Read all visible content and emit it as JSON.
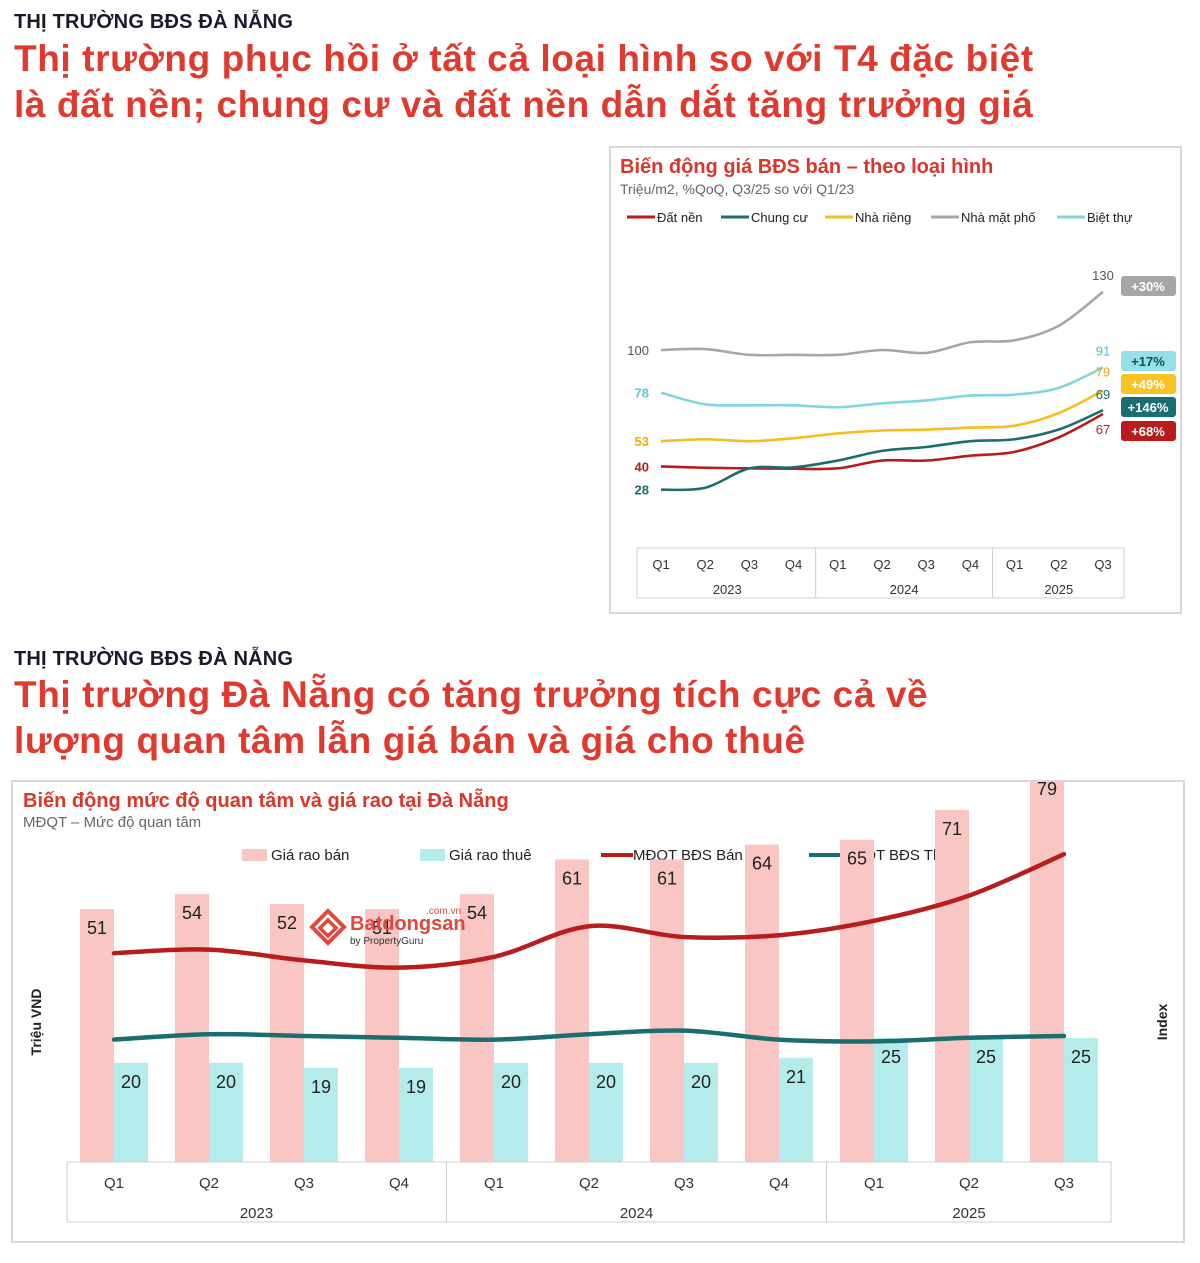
{
  "section1": {
    "eyebrow": "THỊ TRƯỜNG BĐS ĐÀ NẴNG",
    "headline_line1": "Thị trường phục hồi ở tất cả loại hình so với T4 đặc biệt",
    "headline_line2": "là đất nền; chung cư và đất nền dẫn dắt tăng trưởng giá"
  },
  "section2": {
    "eyebrow": "THỊ TRƯỜNG BĐS ĐÀ NẴNG",
    "headline_line1": "Thị trường Đà Nẵng có tăng trưởng tích cực cả về",
    "headline_line2": "lượng quan tâm lẫn giá bán và giá cho thuê"
  },
  "logo": {
    "name": "Batdongsan",
    "suffix": ".com.vn",
    "tagline": "by PropertyGuru"
  },
  "chart_data": [
    {
      "type": "line",
      "title": "Biến động giá BĐS bán – theo loại hình",
      "subtitle": "Triệu/m2, %QoQ, Q3/25 so với Q1/23",
      "quarters": [
        "Q1",
        "Q2",
        "Q3",
        "Q4",
        "Q1",
        "Q2",
        "Q3",
        "Q4",
        "Q1",
        "Q2",
        "Q3"
      ],
      "years": [
        {
          "label": "2023",
          "span": 4
        },
        {
          "label": "2024",
          "span": 4
        },
        {
          "label": "2025",
          "span": 3
        }
      ],
      "ylim": [
        20,
        140
      ],
      "legend_position": "top",
      "series": [
        {
          "name": "Đất nền",
          "color": "#b81c1c",
          "values": [
            40,
            39.3,
            39,
            38.8,
            39,
            43,
            43,
            45.5,
            47.5,
            55,
            67
          ],
          "start_label": "40",
          "end_label": "67",
          "change": "+68%"
        },
        {
          "name": "Chung cư",
          "color": "#1b6e70",
          "values": [
            28,
            29,
            39,
            39.5,
            43,
            48,
            50,
            53,
            54,
            59,
            69
          ],
          "start_label": "28",
          "end_label": "69",
          "change": "+146%"
        },
        {
          "name": "Nhà riêng",
          "color": "#f5bd1f",
          "values": [
            53,
            54,
            53,
            54.5,
            57,
            58.5,
            59,
            60,
            61,
            67.5,
            79
          ],
          "start_label": "53",
          "end_label": "79",
          "change": "+49%"
        },
        {
          "name": "Nhà mặt phố",
          "color": "#a6a6a6",
          "values": [
            100,
            100.5,
            97.5,
            97.5,
            97.5,
            100,
            98.5,
            104,
            105,
            112.5,
            130
          ],
          "start_label": "100",
          "end_label": "130",
          "change": "+30%"
        },
        {
          "name": "Biệt thự",
          "color": "#7fd6e0",
          "values": [
            78,
            72,
            71.5,
            71.5,
            70.5,
            72.5,
            74,
            76.5,
            77,
            80.5,
            91
          ],
          "start_label": "78",
          "end_label": "91",
          "change": "+17%"
        }
      ]
    },
    {
      "type": "bar",
      "title": "Biến động mức độ quan tâm và giá rao tại Đà Nẵng",
      "subtitle": "MĐQT – Mức độ quan tâm",
      "ylabel": "Triệu VND",
      "y2label": "Index",
      "quarters": [
        "Q1",
        "Q2",
        "Q3",
        "Q4",
        "Q1",
        "Q2",
        "Q3",
        "Q4",
        "Q1",
        "Q2",
        "Q3"
      ],
      "years": [
        {
          "label": "2023",
          "span": 4
        },
        {
          "label": "2024",
          "span": 4
        },
        {
          "label": "2025",
          "span": 3
        }
      ],
      "ylim": [
        0,
        100
      ],
      "legend_position": "top",
      "series": [
        {
          "name": "Giá rao bán",
          "kind": "bar",
          "color": "#f9c6c3",
          "values": [
            51,
            54,
            52,
            51,
            54,
            61,
            61,
            64,
            65,
            71,
            79
          ]
        },
        {
          "name": "Giá rao thuê",
          "kind": "bar",
          "color": "#b4ecec",
          "values": [
            20,
            20,
            19,
            19,
            20,
            20,
            20,
            21,
            25,
            25,
            25
          ]
        },
        {
          "name": "MĐQT BĐS Bán",
          "kind": "line",
          "color": "#b81c1c",
          "values": [
            116,
            118,
            112,
            108,
            114,
            131,
            125,
            126,
            134,
            148,
            171
          ]
        },
        {
          "name": "MĐQT BĐS Thuê",
          "kind": "line",
          "color": "#1b6e70",
          "values": [
            68,
            71,
            70,
            69,
            68,
            71,
            73,
            68,
            67,
            69,
            70
          ]
        }
      ]
    }
  ]
}
